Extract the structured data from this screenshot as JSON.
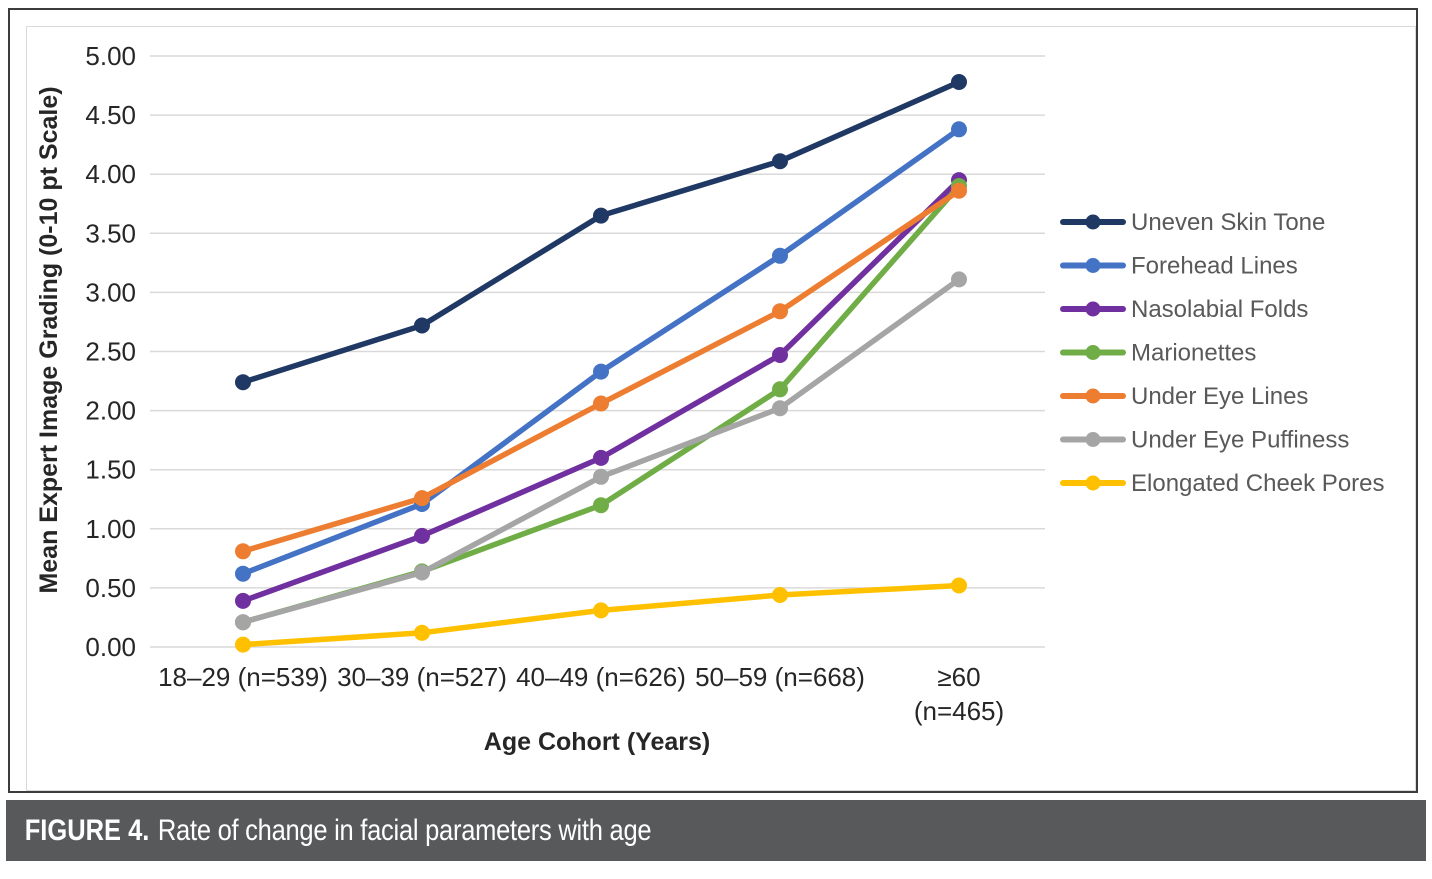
{
  "figure": {
    "caption_label": "FIGURE 4.",
    "caption_text": "Rate of change in facial parameters with age",
    "caption_bg": "#58595b",
    "caption_text_color": "#ffffff"
  },
  "chart_data": {
    "type": "line",
    "title": "",
    "xlabel": "Age Cohort (Years)",
    "ylabel": "Mean Expert Image Grading (0-10 pt Scale)",
    "ylim": [
      0,
      5
    ],
    "ytick_labels": [
      "0.00",
      "0.50",
      "1.00",
      "1.50",
      "2.00",
      "2.50",
      "3.00",
      "3.50",
      "4.00",
      "4.50",
      "5.00"
    ],
    "grid": true,
    "legend_position": "right",
    "categories": [
      "18–29 (n=539)",
      "30–39 (n=527)",
      "40–49 (n=626)",
      "50–59 (n=668)",
      "≥60\n(n=465)"
    ],
    "series": [
      {
        "name": "Uneven Skin Tone",
        "color": "#1F3864",
        "values": [
          2.24,
          2.72,
          3.65,
          4.11,
          4.78
        ]
      },
      {
        "name": "Forehead Lines",
        "color": "#4472C4",
        "values": [
          0.62,
          1.21,
          2.33,
          3.31,
          4.38
        ]
      },
      {
        "name": "Nasolabial Folds",
        "color": "#7030A0",
        "values": [
          0.39,
          0.94,
          1.6,
          2.47,
          3.95
        ]
      },
      {
        "name": "Marionettes",
        "color": "#70AD47",
        "values": [
          0.21,
          0.64,
          1.2,
          2.18,
          3.9
        ]
      },
      {
        "name": "Under Eye Lines",
        "color": "#ED7D31",
        "values": [
          0.81,
          1.26,
          2.06,
          2.84,
          3.86
        ]
      },
      {
        "name": "Under Eye Puffiness",
        "color": "#A5A5A5",
        "values": [
          0.21,
          0.63,
          1.44,
          2.02,
          3.11
        ]
      },
      {
        "name": "Elongated Cheek Pores",
        "color": "#FFC000",
        "values": [
          0.02,
          0.12,
          0.31,
          0.44,
          0.52
        ]
      }
    ],
    "colors": {
      "gridline": "#d9d9d9",
      "axis_text": "#262626",
      "legend_text": "#595959"
    }
  }
}
